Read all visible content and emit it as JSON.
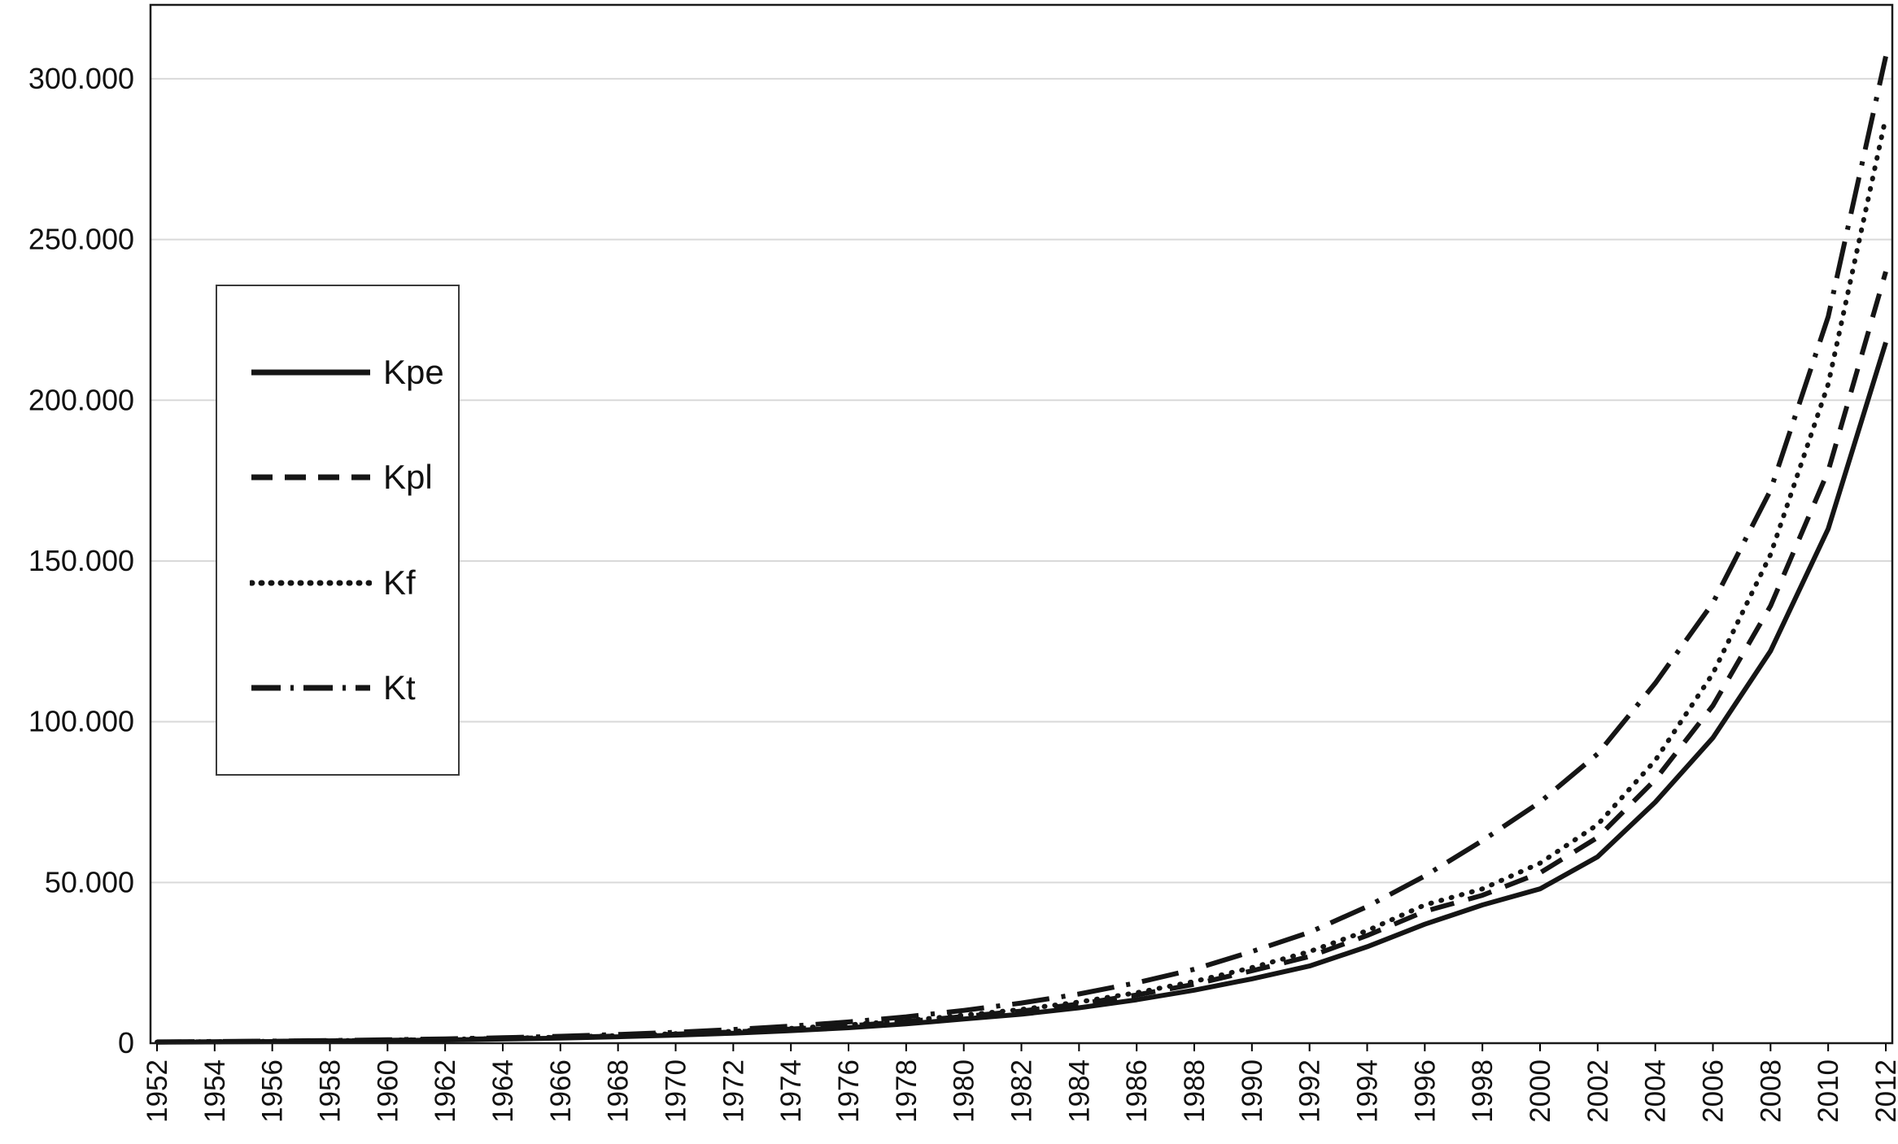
{
  "chart": {
    "background": "#ffffff",
    "line_color": "#151515",
    "grid_color": "#d9d9d9",
    "axis_color": "#000000",
    "border_color": "#1a1a1a"
  },
  "chart_data": {
    "type": "line",
    "title": "",
    "xlabel": "",
    "ylabel": "",
    "grid": "horizontal",
    "legend_position": "upper-left",
    "ylim": [
      0,
      323000
    ],
    "x": [
      1952,
      1954,
      1956,
      1958,
      1960,
      1962,
      1964,
      1966,
      1968,
      1970,
      1972,
      1974,
      1976,
      1978,
      1980,
      1982,
      1984,
      1986,
      1988,
      1990,
      1992,
      1994,
      1996,
      1998,
      2000,
      2002,
      2004,
      2006,
      2008,
      2010,
      2012
    ],
    "y_ticks": [
      {
        "value": 0,
        "label": "0"
      },
      {
        "value": 50000,
        "label": "50.000"
      },
      {
        "value": 100000,
        "label": "100.000"
      },
      {
        "value": 150000,
        "label": "150.000"
      },
      {
        "value": 200000,
        "label": "200.000"
      },
      {
        "value": 250000,
        "label": "250.000"
      },
      {
        "value": 300000,
        "label": "300.000"
      }
    ],
    "series": [
      {
        "name": "Kpe",
        "style": "solid",
        "values": [
          300,
          400,
          500,
          650,
          800,
          1000,
          1300,
          1600,
          2000,
          2500,
          3100,
          3900,
          4800,
          6000,
          7500,
          9000,
          11000,
          13500,
          16500,
          20000,
          24000,
          30000,
          37000,
          43000,
          48000,
          58000,
          75000,
          95000,
          122000,
          160000,
          218000
        ]
      },
      {
        "name": "Kpl",
        "style": "dashed",
        "values": [
          350,
          450,
          580,
          730,
          900,
          1150,
          1450,
          1800,
          2250,
          2800,
          3500,
          4400,
          5400,
          6700,
          8300,
          10000,
          12200,
          15000,
          18300,
          22500,
          27000,
          33500,
          41000,
          46000,
          53000,
          64000,
          82000,
          105000,
          136000,
          178000,
          240000
        ]
      },
      {
        "name": "Kf",
        "style": "dotted",
        "values": [
          350,
          460,
          590,
          750,
          950,
          1200,
          1500,
          1900,
          2350,
          2950,
          3700,
          4600,
          5700,
          7000,
          8700,
          10500,
          12800,
          15700,
          19200,
          23500,
          28500,
          35000,
          43000,
          48000,
          56000,
          68000,
          88000,
          115000,
          152000,
          205000,
          288000
        ]
      },
      {
        "name": "Kt",
        "style": "dashdot",
        "values": [
          400,
          520,
          660,
          840,
          1050,
          1350,
          1700,
          2150,
          2700,
          3400,
          4250,
          5300,
          6600,
          8200,
          10200,
          12500,
          15300,
          18800,
          23000,
          28500,
          34500,
          42500,
          52000,
          63000,
          75000,
          90000,
          112000,
          137000,
          172000,
          226000,
          307000
        ]
      }
    ]
  }
}
